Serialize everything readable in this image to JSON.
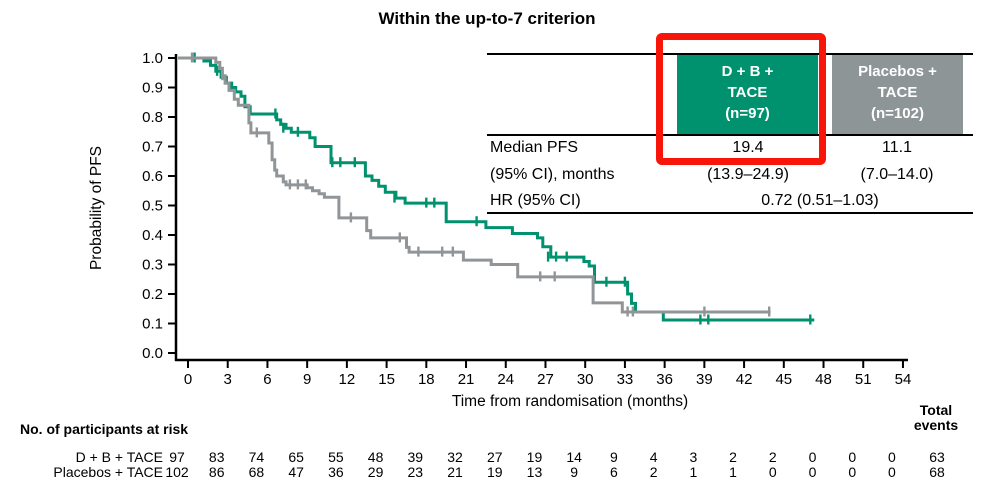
{
  "title": "Within the up-to-7 criterion",
  "colors": {
    "teal": "#00916e",
    "header_gray": "#8d9596",
    "curve_gray": "#919598",
    "highlight_red": "#f8150a",
    "axis_black": "#000000"
  },
  "summary_table": {
    "col1_header": {
      "line1": "D + B +",
      "line2": "TACE",
      "line3": "(n=97)"
    },
    "col2_header": {
      "line1": "Placebos +",
      "line2": "TACE",
      "line3": "(n=102)"
    },
    "median_label_line1": "Median PFS",
    "median_label_line2": "(95% CI), months",
    "median_col1_value": "19.4",
    "median_col1_ci": "(13.9–24.9)",
    "median_col2_value": "11.1",
    "median_col2_ci": "(7.0–14.0)",
    "hr_label": "HR (95% CI)",
    "hr_value": "0.72 (0.51–1.03)"
  },
  "chart_data": {
    "type": "line",
    "subtype": "kaplan-meier-step",
    "title": "Within the up-to-7 criterion",
    "xlabel": "Time from randomisation (months)",
    "ylabel": "Probability of PFS",
    "xlim": [
      0,
      54
    ],
    "ylim": [
      0.0,
      1.0
    ],
    "grid": false,
    "x_ticks": [
      0,
      3,
      6,
      9,
      12,
      15,
      18,
      21,
      24,
      27,
      30,
      33,
      36,
      39,
      42,
      45,
      48,
      51,
      54
    ],
    "y_ticks": [
      "1.0",
      "0.9",
      "0.8",
      "0.7",
      "0.6",
      "0.5",
      "0.4",
      "0.3",
      "0.2",
      "0.1",
      "0.0"
    ],
    "series": [
      {
        "name": "D + B + TACE",
        "color": "#00916e",
        "end_time": 47.3,
        "steps": [
          [
            0,
            1.0
          ],
          [
            1.2,
            0.99
          ],
          [
            1.7,
            0.975
          ],
          [
            2.1,
            0.955
          ],
          [
            2.5,
            0.935
          ],
          [
            2.9,
            0.915
          ],
          [
            3.3,
            0.9
          ],
          [
            3.6,
            0.885
          ],
          [
            4.0,
            0.87
          ],
          [
            4.3,
            0.835
          ],
          [
            4.7,
            0.81
          ],
          [
            6.7,
            0.79
          ],
          [
            7.0,
            0.775
          ],
          [
            7.4,
            0.762
          ],
          [
            7.8,
            0.748
          ],
          [
            9.2,
            0.73
          ],
          [
            9.6,
            0.7
          ],
          [
            10.8,
            0.645
          ],
          [
            13.4,
            0.6
          ],
          [
            13.9,
            0.585
          ],
          [
            14.4,
            0.565
          ],
          [
            14.9,
            0.545
          ],
          [
            15.7,
            0.525
          ],
          [
            16.4,
            0.508
          ],
          [
            19.5,
            0.445
          ],
          [
            22.5,
            0.425
          ],
          [
            24.5,
            0.405
          ],
          [
            26.4,
            0.39
          ],
          [
            26.8,
            0.36
          ],
          [
            27.4,
            0.325
          ],
          [
            29.9,
            0.31
          ],
          [
            30.3,
            0.295
          ],
          [
            30.7,
            0.24
          ],
          [
            33.2,
            0.2
          ],
          [
            33.5,
            0.168
          ],
          [
            33.8,
            0.139
          ],
          [
            35.9,
            0.112
          ]
        ],
        "censors": [
          [
            0.5,
            1.0
          ],
          [
            2.2,
            0.955
          ],
          [
            6.6,
            0.81
          ],
          [
            7.2,
            0.762
          ],
          [
            8.3,
            0.748
          ],
          [
            10.9,
            0.645
          ],
          [
            11.5,
            0.645
          ],
          [
            12.6,
            0.645
          ],
          [
            15.6,
            0.525
          ],
          [
            18.0,
            0.508
          ],
          [
            18.6,
            0.508
          ],
          [
            21.8,
            0.445
          ],
          [
            27.2,
            0.325
          ],
          [
            27.8,
            0.325
          ],
          [
            28.6,
            0.325
          ],
          [
            31.6,
            0.24
          ],
          [
            33.0,
            0.24
          ],
          [
            38.7,
            0.112
          ],
          [
            39.3,
            0.112
          ],
          [
            47.0,
            0.112
          ]
        ]
      },
      {
        "name": "Placebos + TACE",
        "color": "#919598",
        "end_time": 44.0,
        "steps": [
          [
            0,
            1.0
          ],
          [
            2.1,
            0.985
          ],
          [
            2.4,
            0.965
          ],
          [
            2.6,
            0.94
          ],
          [
            2.8,
            0.915
          ],
          [
            3.1,
            0.89
          ],
          [
            3.5,
            0.86
          ],
          [
            3.8,
            0.84
          ],
          [
            4.6,
            0.78
          ],
          [
            4.75,
            0.746
          ],
          [
            6.1,
            0.712
          ],
          [
            6.35,
            0.655
          ],
          [
            6.55,
            0.62
          ],
          [
            6.7,
            0.6
          ],
          [
            7.2,
            0.58
          ],
          [
            7.4,
            0.57
          ],
          [
            9.0,
            0.56
          ],
          [
            9.4,
            0.55
          ],
          [
            9.9,
            0.54
          ],
          [
            10.3,
            0.528
          ],
          [
            11.4,
            0.458
          ],
          [
            13.5,
            0.415
          ],
          [
            13.8,
            0.39
          ],
          [
            16.5,
            0.358
          ],
          [
            16.7,
            0.342
          ],
          [
            20.8,
            0.315
          ],
          [
            22.9,
            0.3
          ],
          [
            24.9,
            0.258
          ],
          [
            30.6,
            0.17
          ],
          [
            32.8,
            0.139
          ]
        ],
        "censors": [
          [
            0.3,
            1.0
          ],
          [
            2.6,
            0.94
          ],
          [
            5.2,
            0.746
          ],
          [
            7.7,
            0.57
          ],
          [
            8.3,
            0.57
          ],
          [
            8.9,
            0.57
          ],
          [
            12.3,
            0.458
          ],
          [
            16.0,
            0.39
          ],
          [
            17.4,
            0.342
          ],
          [
            19.2,
            0.342
          ],
          [
            20.0,
            0.342
          ],
          [
            26.6,
            0.258
          ],
          [
            27.7,
            0.258
          ],
          [
            33.2,
            0.139
          ],
          [
            33.6,
            0.139
          ],
          [
            39.0,
            0.139
          ],
          [
            43.9,
            0.139
          ]
        ]
      }
    ]
  },
  "risk_table": {
    "title": "No. of participants at risk",
    "total_header_line1": "Total",
    "total_header_line2": "events",
    "rows": [
      {
        "label": "D + B + TACE",
        "values": [
          "97",
          "83",
          "74",
          "65",
          "55",
          "48",
          "39",
          "32",
          "27",
          "19",
          "14",
          "9",
          "4",
          "3",
          "2",
          "2",
          "0",
          "0",
          "0"
        ],
        "total": "63"
      },
      {
        "label": "Placebos + TACE",
        "values": [
          "102",
          "86",
          "68",
          "47",
          "36",
          "29",
          "23",
          "21",
          "19",
          "13",
          "9",
          "6",
          "2",
          "1",
          "1",
          "0",
          "0",
          "0",
          "0"
        ],
        "total": "68"
      }
    ]
  }
}
